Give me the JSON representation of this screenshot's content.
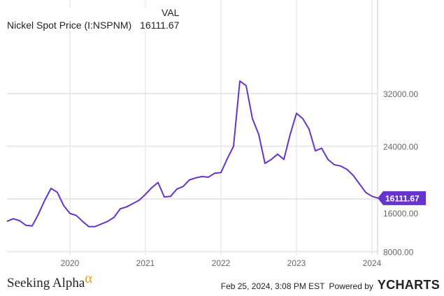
{
  "header": {
    "col_label": "VAL",
    "series_name": "Nickel Spot Price (I:NSPNM)",
    "series_value": "16111.67"
  },
  "footer": {
    "brand": "Seeking Alpha",
    "brand_mark": "α",
    "timestamp": "Feb 25, 2024, 3:08 PM EST",
    "powered_by": "Powered by",
    "ycharts": "YCHARTS"
  },
  "colors": {
    "line": "#6633cc",
    "grid": "#e8e8e8",
    "axis_text": "#666666"
  },
  "chart_data": {
    "type": "line",
    "title": "Nickel Spot Price (I:NSPNM)",
    "xlabel": "",
    "ylabel": "",
    "start_month": "2019-03",
    "x_ticks": [
      {
        "label": "2020",
        "month_index": 10
      },
      {
        "label": "2021",
        "month_index": 22
      },
      {
        "label": "2022",
        "month_index": 34
      },
      {
        "label": "2023",
        "month_index": 46
      },
      {
        "label": "2024",
        "month_index": 58
      }
    ],
    "y_ticks": [
      {
        "value": 8000,
        "label": "8000.00"
      },
      {
        "value": 16000,
        "label": "16000.00"
      },
      {
        "value": 24000,
        "label": "24000.00"
      },
      {
        "value": 32000,
        "label": "32000.00"
      }
    ],
    "ylim": [
      7520,
      46200
    ],
    "grid": true,
    "last_value_label": "16111.67",
    "series": [
      {
        "name": "Nickel Spot Price (I:NSPNM)",
        "values": [
          12600,
          13000,
          12700,
          12000,
          11900,
          13700,
          15800,
          17600,
          17000,
          15000,
          13800,
          13500,
          12600,
          11800,
          11800,
          12200,
          12600,
          13200,
          14500,
          14800,
          15300,
          15800,
          16700,
          17700,
          18500,
          16300,
          16400,
          17500,
          17900,
          18900,
          19200,
          19400,
          19300,
          19900,
          20000,
          22100,
          24000,
          33900,
          33200,
          28200,
          25800,
          21400,
          22000,
          22800,
          22000,
          25800,
          29000,
          28200,
          26600,
          23300,
          23700,
          22000,
          21200,
          21000,
          20500,
          19600,
          18300,
          17000,
          16400,
          16111.67
        ]
      }
    ]
  }
}
